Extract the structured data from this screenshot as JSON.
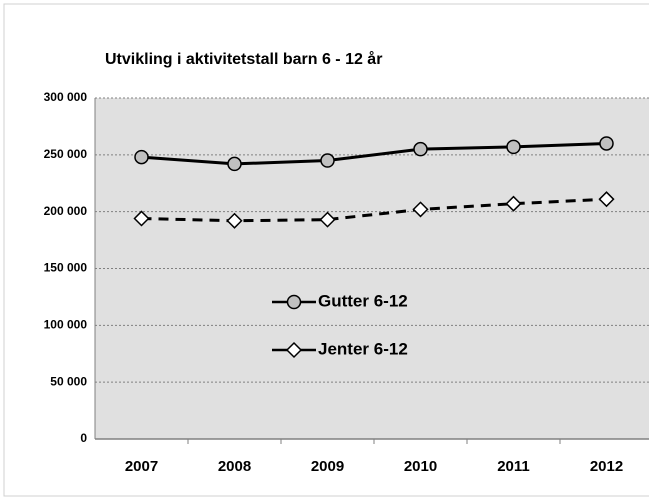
{
  "chart_data": {
    "type": "line",
    "title": "Utvikling i aktivitetstall  barn 6 - 12 år",
    "categories": [
      "2007",
      "2008",
      "2009",
      "2010",
      "2011",
      "2012"
    ],
    "series": [
      {
        "name": "Gutter 6-12",
        "color": "#000000",
        "line_style": "solid",
        "marker": "circle",
        "marker_fill": "#c0c0c0",
        "values": [
          248000,
          242000,
          245000,
          255000,
          257000,
          260000
        ]
      },
      {
        "name": "Jenter 6-12",
        "color": "#000000",
        "line_style": "dashed",
        "marker": "diamond",
        "marker_fill": "#ffffff",
        "values": [
          194000,
          192000,
          193000,
          202000,
          207000,
          211000
        ]
      }
    ],
    "ylim": [
      0,
      300000
    ],
    "yticks": [
      0,
      {
        "value": 50000,
        "label": "50 000"
      },
      {
        "value": 100000,
        "label": "100 000"
      },
      {
        "value": 150000,
        "label": "150 000"
      },
      {
        "value": 200000,
        "label": "200 000"
      },
      {
        "value": 250000,
        "label": "250 000"
      },
      {
        "value": 300000,
        "label": "300 000"
      }
    ],
    "grid": true,
    "legend": "center"
  }
}
